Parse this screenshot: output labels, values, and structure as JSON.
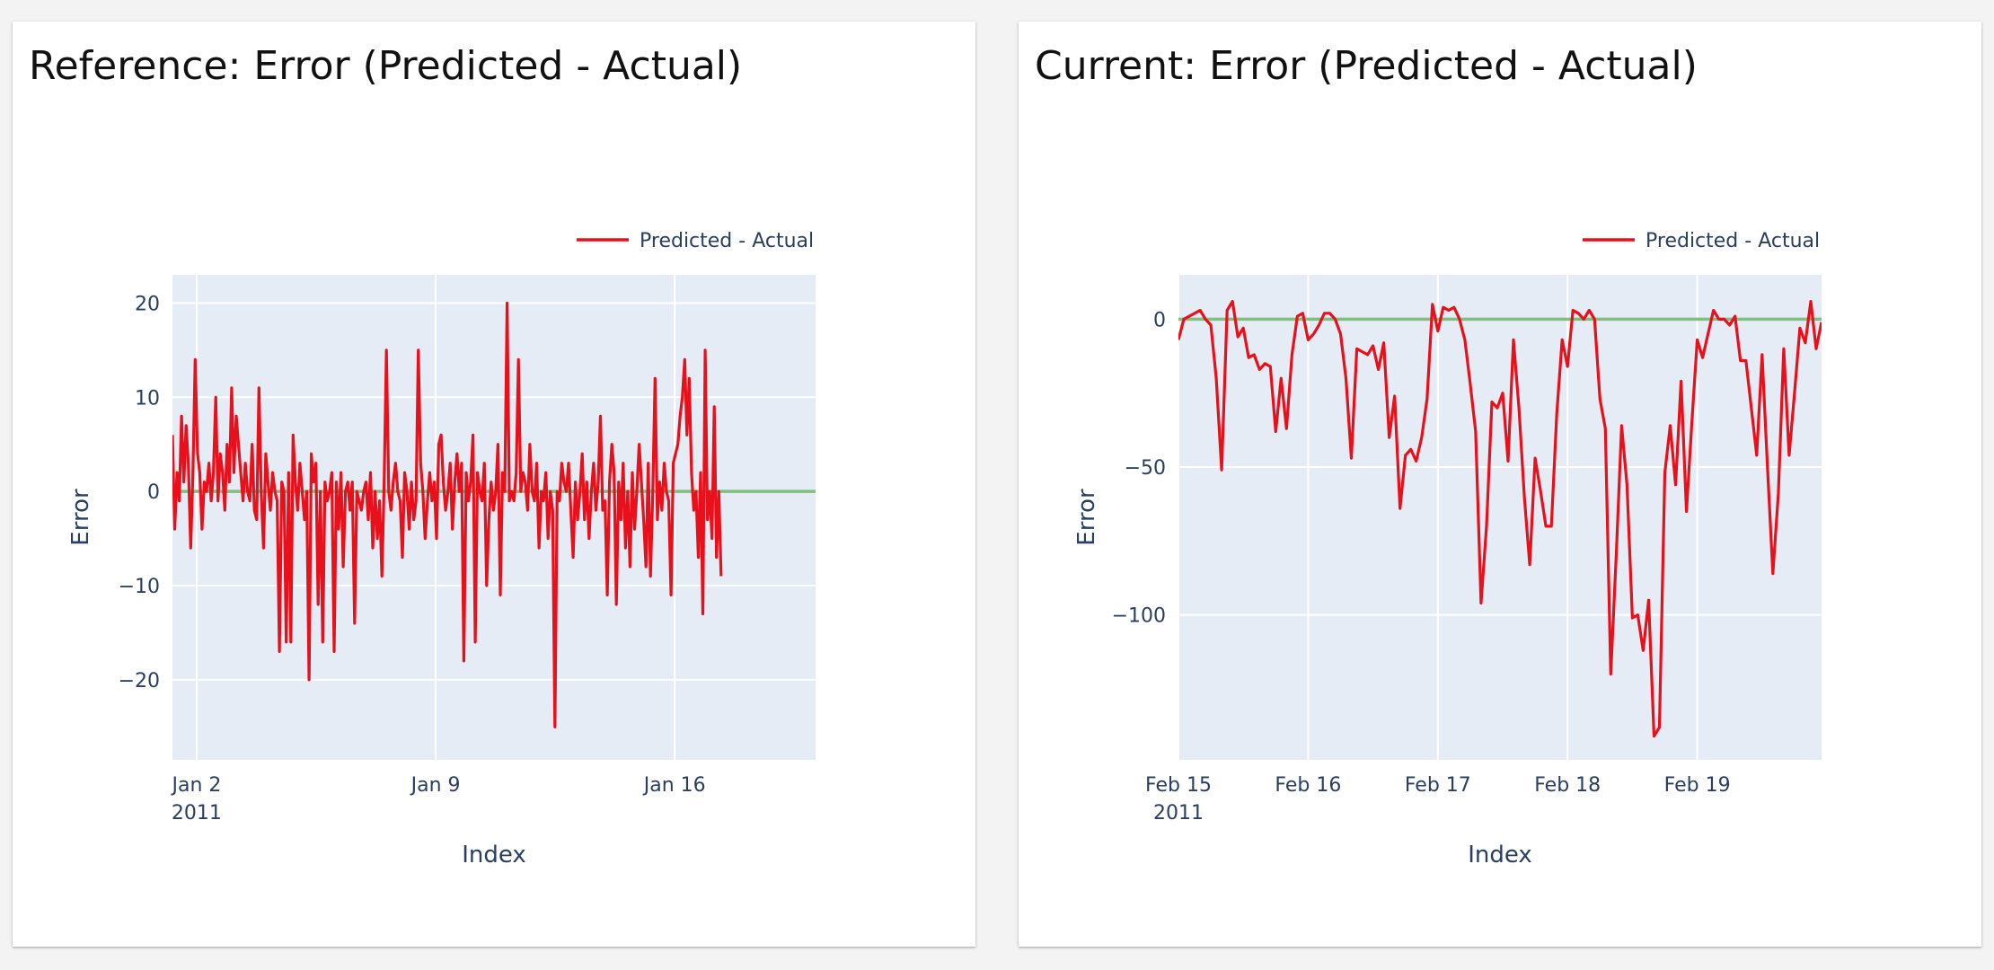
{
  "panels": [
    {
      "title": "Reference: Error (Predicted - Actual)",
      "chart_data": {
        "type": "line",
        "title": "Reference: Error (Predicted - Actual)",
        "xlabel": "Index",
        "ylabel": "Error",
        "x_axis_type": "date",
        "xlim": [
          "2011-01-01T07:00",
          "2011-01-20T03:00"
        ],
        "ylim": [
          -28.5,
          23
        ],
        "x_ticks": [
          {
            "at": "2011-01-02T00:00",
            "label": "Jan 2",
            "sublabel": "2011"
          },
          {
            "at": "2011-01-09T00:00",
            "label": "Jan 9",
            "sublabel": ""
          },
          {
            "at": "2011-01-16T00:00",
            "label": "Jan 16",
            "sublabel": ""
          }
        ],
        "y_ticks": [
          20,
          10,
          0,
          -10,
          -20
        ],
        "y_tick_labels": [
          "20",
          "10",
          "0",
          "−10",
          "−20"
        ],
        "grid": true,
        "legend": "top-right",
        "reference_line": {
          "y": 0,
          "color": "#7fbf7f"
        },
        "series": [
          {
            "name": "Predicted - Actual",
            "color": "#e8101a",
            "x_start": "2011-01-01T07:00",
            "step_hours": 1.6,
            "values": [
              6,
              -4,
              2,
              -1,
              8,
              1,
              7,
              3,
              -6,
              2,
              14,
              4,
              2,
              -4,
              1,
              0,
              3,
              -1,
              2,
              10,
              -1,
              4,
              2,
              -2,
              5,
              1,
              11,
              2,
              8,
              5,
              2,
              -1,
              3,
              0,
              -1,
              5,
              -2,
              -3,
              11,
              0,
              -6,
              4,
              1,
              -2,
              2,
              0,
              -1,
              -17,
              1,
              0,
              -16,
              2,
              -16,
              6,
              1,
              -2,
              3,
              0,
              -3,
              0,
              -20,
              4,
              1,
              3,
              -12,
              0,
              -16,
              1,
              -1,
              0,
              2,
              -17,
              1,
              -4,
              2,
              -8,
              0,
              1,
              -2,
              1,
              -14,
              0,
              -1,
              -2,
              0,
              1,
              -3,
              2,
              -6,
              0,
              -5,
              -1,
              -9,
              1,
              15,
              0,
              -2,
              1,
              3,
              0,
              -1,
              -7,
              2,
              0,
              -4,
              1,
              -3,
              -1,
              15,
              3,
              0,
              -5,
              -1,
              2,
              -1,
              1,
              -5,
              5,
              6,
              1,
              -2,
              0,
              3,
              -4,
              1,
              4,
              0,
              3,
              -18,
              2,
              -1,
              1,
              6,
              -16,
              2,
              0,
              -1,
              3,
              -10,
              -3,
              1,
              -2,
              0,
              5,
              -11,
              2,
              0,
              20,
              -1,
              0,
              -1,
              2,
              14,
              0,
              2,
              1,
              -2,
              5,
              0,
              -1,
              3,
              -6,
              0,
              -1,
              2,
              -5,
              0,
              -2,
              -25,
              0,
              -1,
              3,
              1,
              0,
              3,
              -2,
              -7,
              1,
              -3,
              0,
              4,
              -3,
              1,
              -5,
              0,
              3,
              -2,
              1,
              8,
              -2,
              -1,
              -11,
              1,
              5,
              2,
              -12,
              1,
              -3,
              3,
              -6,
              0,
              -8,
              2,
              -4,
              0,
              5,
              1,
              -3,
              -8,
              3,
              -9,
              0,
              12,
              -3,
              1,
              -2,
              3,
              0,
              -1,
              -11,
              3,
              4,
              5,
              8,
              10,
              14,
              6,
              12,
              2,
              -2,
              0,
              -7,
              2,
              -13,
              15,
              -3,
              0,
              -5,
              9,
              -7,
              0,
              -9
            ],
            "values_note_removed": true
          }
        ]
      }
    },
    {
      "title": "Current: Error (Predicted - Actual)",
      "chart_data": {
        "type": "line",
        "title": "Current: Error (Predicted - Actual)",
        "xlabel": "Index",
        "ylabel": "Error",
        "x_axis_type": "date",
        "xlim": [
          "2011-02-15T00:00",
          "2011-02-19T23:00"
        ],
        "ylim": [
          -149,
          15
        ],
        "x_ticks": [
          {
            "at": "2011-02-15T00:00",
            "label": "Feb 15",
            "sublabel": "2011"
          },
          {
            "at": "2011-02-16T00:00",
            "label": "Feb 16",
            "sublabel": ""
          },
          {
            "at": "2011-02-17T00:00",
            "label": "Feb 17",
            "sublabel": ""
          },
          {
            "at": "2011-02-18T00:00",
            "label": "Feb 18",
            "sublabel": ""
          },
          {
            "at": "2011-02-19T00:00",
            "label": "Feb 19",
            "sublabel": ""
          }
        ],
        "y_ticks": [
          0,
          -50,
          -100
        ],
        "y_tick_labels": [
          "0",
          "−50",
          "−100"
        ],
        "grid": true,
        "legend": "top-right",
        "reference_line": {
          "y": 0,
          "color": "#7fbf7f"
        },
        "series": [
          {
            "name": "Predicted - Actual",
            "color": "#e8101a",
            "x_start": "2011-02-15T00:00",
            "step_hours": 1,
            "values": [
              -7,
              0,
              1,
              2,
              3,
              0,
              -2,
              -20,
              -51,
              3,
              6,
              -6,
              -3,
              -13,
              -12,
              -17,
              -15,
              -16,
              -38,
              -20,
              -37,
              -12,
              1,
              2,
              -7,
              -5,
              -2,
              2,
              2,
              0,
              -5,
              -20,
              -47,
              -10,
              -11,
              -12,
              -9,
              -17,
              -8,
              -40,
              -26,
              -64,
              -46,
              -44,
              -48,
              -40,
              -27,
              5,
              -4,
              4,
              3,
              4,
              0,
              -7,
              -22,
              -38,
              -96,
              -70,
              -28,
              -30,
              -25,
              -48,
              -7,
              -30,
              -60,
              -83,
              -47,
              -58,
              -70,
              -70,
              -32,
              -7,
              -16,
              3,
              2,
              0,
              3,
              0,
              -27,
              -37,
              -120,
              -80,
              -36,
              -56,
              -101,
              -100,
              -112,
              -95,
              -141,
              -138,
              -52,
              -36,
              -56,
              -21,
              -65,
              -35,
              -7,
              -13,
              -5,
              3,
              0,
              0,
              -2,
              1,
              -14,
              -14,
              -30,
              -46,
              -12,
              -50,
              -86,
              -59,
              -10,
              -46,
              -25,
              -3,
              -8,
              6,
              -10,
              -1
            ]
          }
        ]
      }
    }
  ]
}
